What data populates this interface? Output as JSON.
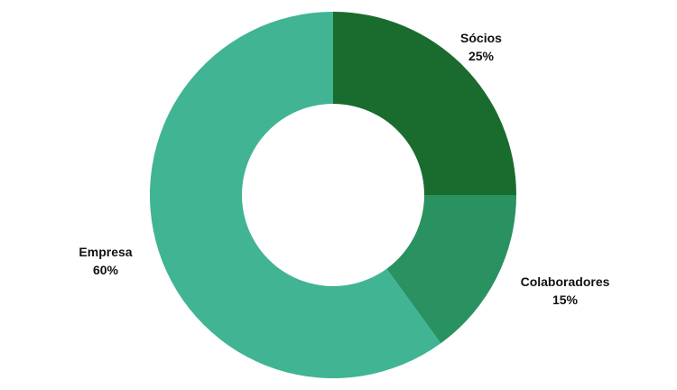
{
  "chart_data": {
    "type": "pie",
    "variant": "donut",
    "title": "",
    "legend": "none",
    "slices": [
      {
        "label": "Sócios",
        "value": 25,
        "value_label": "25%",
        "color": "#1a6b2e"
      },
      {
        "label": "Colaboradores",
        "value": 15,
        "value_label": "15%",
        "color": "#2a9160"
      },
      {
        "label": "Empresa",
        "value": 60,
        "value_label": "60%",
        "color": "#40b493"
      }
    ]
  }
}
